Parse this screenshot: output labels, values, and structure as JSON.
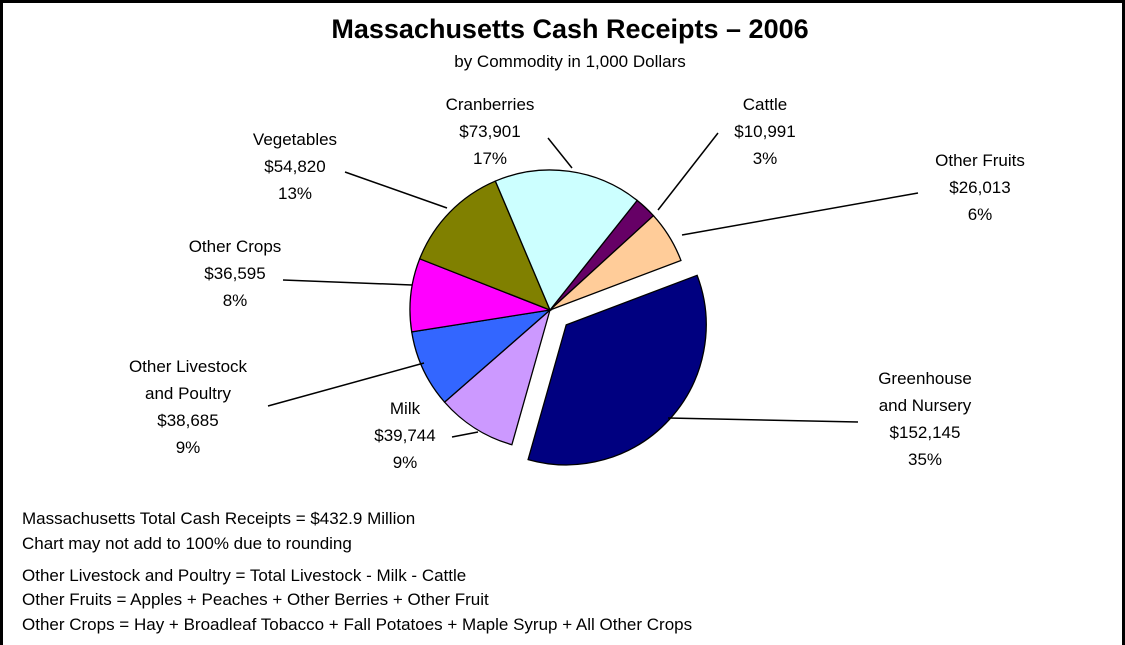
{
  "chart_data": {
    "type": "pie",
    "title": "Massachusetts Cash Receipts – 2006",
    "subtitle": "by Commodity in 1,000 Dollars",
    "categories": [
      "Cattle",
      "Other Fruits",
      "Greenhouse and Nursery",
      "Milk",
      "Other Livestock and Poultry",
      "Other Crops",
      "Vegetables",
      "Cranberries"
    ],
    "values": [
      10991,
      26013,
      152145,
      39744,
      38685,
      36595,
      54820,
      73901
    ],
    "value_labels": [
      "$10,991",
      "$26,013",
      "$152,145",
      "$39,744",
      "$38,685",
      "$36,595",
      "$54,820",
      "$73,901"
    ],
    "percent_labels": [
      "3%",
      "6%",
      "35%",
      "9%",
      "9%",
      "8%",
      "13%",
      "17%"
    ],
    "colors": [
      "#660066",
      "#ffcc99",
      "#000080",
      "#cc99ff",
      "#3366ff",
      "#ff00ff",
      "#808000",
      "#ccffff"
    ],
    "exploded": [
      "Greenhouse and Nursery"
    ],
    "notes": [
      "Massachusetts Total Cash Receipts = $432.9 Million",
      "Chart may not add to 100% due to rounding",
      "Other Livestock and Poultry = Total Livestock - Milk - Cattle",
      "Other Fruits = Apples + Peaches + Other Berries + Other Fruit",
      "Other Crops = Hay + Broadleaf Tobacco + Fall Potatoes + Maple Syrup + All Other Crops"
    ]
  }
}
